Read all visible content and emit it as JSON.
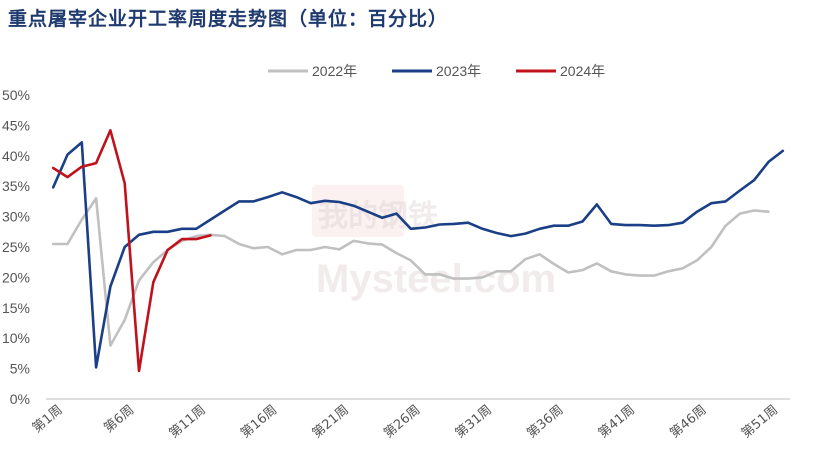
{
  "title": "重点屠宰企业开工率周度走势图（单位：百分比）",
  "watermark": {
    "brand": "我的钢铁",
    "site": "Mysteel.com"
  },
  "chart_data": {
    "type": "line",
    "title": "重点屠宰企业开工率周度走势图（单位：百分比）",
    "xlabel": "",
    "ylabel": "",
    "ylim": [
      0,
      50
    ],
    "yticks": [
      "0%",
      "5%",
      "10%",
      "15%",
      "20%",
      "25%",
      "30%",
      "35%",
      "40%",
      "45%",
      "50%"
    ],
    "x_count": 52,
    "xtick_labels": [
      "第1周",
      "第6周",
      "第11周",
      "第16周",
      "第21周",
      "第26周",
      "第31周",
      "第36周",
      "第41周",
      "第46周",
      "第51周"
    ],
    "xtick_weeks": [
      1,
      6,
      11,
      16,
      21,
      26,
      31,
      36,
      41,
      46,
      51
    ],
    "grid": false,
    "legend": "top",
    "series": [
      {
        "name": "2022年",
        "color": "#c0c0c0",
        "values": [
          25.5,
          25.5,
          29.5,
          33,
          8.8,
          13,
          19.5,
          22.5,
          24.5,
          26,
          26.8,
          27,
          26.8,
          25.5,
          24.8,
          25,
          23.8,
          24.5,
          24.5,
          25,
          24.6,
          26,
          25.6,
          25.4,
          24,
          22.8,
          20.5,
          20.5,
          19.8,
          19.8,
          20,
          21,
          21,
          23,
          23.8,
          22.2,
          20.8,
          21.2,
          22.3,
          21,
          20.5,
          20.3,
          20.3,
          21,
          21.5,
          22.8,
          25,
          28.5,
          30.5,
          31,
          30.8
        ]
      },
      {
        "name": "2023年",
        "color": "#1a3f86",
        "values": [
          34.8,
          40.2,
          42.2,
          5.2,
          18.5,
          25,
          27,
          27.5,
          27.5,
          28,
          28,
          29.5,
          31,
          32.5,
          32.5,
          33.2,
          34,
          33.2,
          32.2,
          32.6,
          32.4,
          31.8,
          30.8,
          29.8,
          30.5,
          28,
          28.2,
          28.7,
          28.8,
          29,
          28,
          27.3,
          26.8,
          27.2,
          28,
          28.5,
          28.5,
          29.2,
          32,
          28.8,
          28.6,
          28.6,
          28.5,
          28.6,
          29,
          30.8,
          32.2,
          32.5,
          34.3,
          36,
          39,
          40.8
        ]
      },
      {
        "name": "2024年",
        "color": "#c0121c",
        "values": [
          38,
          36.5,
          38.2,
          38.8,
          44.2,
          35.5,
          4.6,
          19.2,
          24.5,
          26.3,
          26.3,
          26.9
        ]
      }
    ]
  }
}
